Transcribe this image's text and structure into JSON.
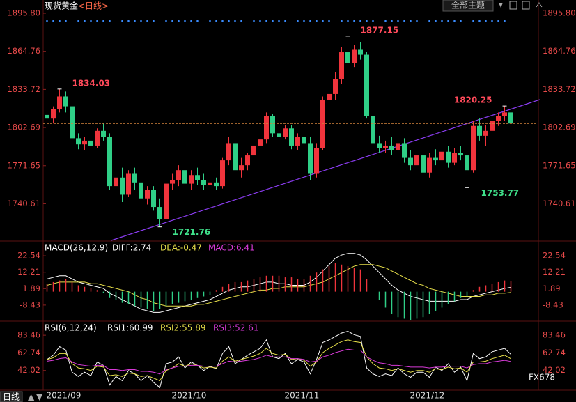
{
  "header": {
    "title": "现货黄金",
    "period": "<日线>",
    "theme_button": "全部主题"
  },
  "footer": {
    "period": "日线",
    "watermark": "FX678"
  },
  "chart_data": [
    {
      "type": "candlestick",
      "categories": [
        "2021/09",
        null,
        null,
        null,
        null,
        null,
        null,
        null,
        null,
        null,
        null,
        null,
        null,
        null,
        null,
        null,
        null,
        null,
        null,
        null,
        "2021/10",
        null,
        null,
        null,
        null,
        null,
        null,
        null,
        null,
        null,
        null,
        null,
        null,
        null,
        null,
        null,
        null,
        null,
        "2021/11",
        null,
        null,
        null,
        null,
        null,
        null,
        null,
        null,
        null,
        null,
        null,
        null,
        null,
        null,
        null,
        null,
        null,
        null,
        null,
        "2021/12",
        null,
        null,
        null,
        null,
        null,
        null,
        null,
        null,
        null,
        null,
        null,
        null,
        null,
        null,
        null,
        null
      ],
      "open": [
        1813,
        1810,
        1818,
        1828,
        1820,
        1794,
        1789,
        1792,
        1788,
        1800,
        1795,
        1755,
        1762,
        1748,
        1765,
        1758,
        1745,
        1752,
        1738,
        1728,
        1757,
        1760,
        1768,
        1757,
        1764,
        1760,
        1756,
        1758,
        1755,
        1776,
        1790,
        1768,
        1772,
        1780,
        1788,
        1793,
        1812,
        1798,
        1795,
        1802,
        1788,
        1795,
        1790,
        1765,
        1786,
        1825,
        1830,
        1842,
        1864,
        1855,
        1866,
        1862,
        1812,
        1790,
        1786,
        1788,
        1784,
        1790,
        1778,
        1772,
        1780,
        1766,
        1778,
        1776,
        1783,
        1774,
        1782,
        1780,
        1768,
        1804,
        1796,
        1800,
        1808,
        1812,
        1815
      ],
      "high": [
        1817,
        1820,
        1834.03,
        1832,
        1822,
        1798,
        1795,
        1797,
        1802,
        1806,
        1798,
        1766,
        1770,
        1768,
        1770,
        1762,
        1755,
        1755,
        1745,
        1760,
        1765,
        1772,
        1770,
        1768,
        1770,
        1765,
        1764,
        1762,
        1778,
        1795,
        1796,
        1778,
        1782,
        1790,
        1797,
        1815,
        1814,
        1802,
        1805,
        1805,
        1798,
        1800,
        1795,
        1790,
        1828,
        1835,
        1848,
        1868,
        1877.15,
        1870,
        1872,
        1864,
        1815,
        1796,
        1792,
        1795,
        1812,
        1794,
        1784,
        1785,
        1786,
        1782,
        1785,
        1788,
        1788,
        1786,
        1788,
        1783,
        1808,
        1810,
        1805,
        1812,
        1815,
        1820.25,
        1818
      ],
      "low": [
        1808,
        1806,
        1815,
        1815,
        1790,
        1785,
        1784,
        1786,
        1786,
        1792,
        1752,
        1750,
        1742,
        1746,
        1752,
        1742,
        1740,
        1735,
        1721.76,
        1725,
        1752,
        1755,
        1754,
        1752,
        1756,
        1752,
        1750,
        1752,
        1753,
        1772,
        1765,
        1762,
        1768,
        1775,
        1783,
        1790,
        1795,
        1790,
        1793,
        1785,
        1784,
        1788,
        1760,
        1762,
        1784,
        1820,
        1825,
        1838,
        1850,
        1852,
        1858,
        1810,
        1785,
        1782,
        1782,
        1780,
        1782,
        1774,
        1768,
        1768,
        1762,
        1762,
        1772,
        1773,
        1770,
        1772,
        1776,
        1753.77,
        1766,
        1792,
        1788,
        1796,
        1804,
        1808,
        1803
      ],
      "close": [
        1810,
        1818,
        1828,
        1820,
        1794,
        1789,
        1792,
        1788,
        1800,
        1795,
        1755,
        1762,
        1748,
        1765,
        1758,
        1745,
        1752,
        1738,
        1728,
        1757,
        1760,
        1768,
        1757,
        1764,
        1760,
        1756,
        1758,
        1755,
        1776,
        1790,
        1768,
        1772,
        1780,
        1788,
        1793,
        1812,
        1798,
        1795,
        1802,
        1788,
        1795,
        1790,
        1765,
        1786,
        1825,
        1830,
        1842,
        1864,
        1855,
        1866,
        1862,
        1812,
        1790,
        1786,
        1788,
        1784,
        1790,
        1778,
        1772,
        1780,
        1766,
        1778,
        1776,
        1783,
        1774,
        1782,
        1780,
        1768,
        1804,
        1796,
        1800,
        1808,
        1812,
        1815,
        1806
      ],
      "up_color": "#f0343c",
      "down_color": "#2fcf87",
      "last_line_color": "#d2823c",
      "ylim": [
        1710.8,
        1900.9
      ],
      "yticks": [
        {
          "value": 1895.8,
          "label": "1895.80"
        },
        1864.76,
        1833.72,
        1802.69,
        1771.65,
        1740.61
      ]
    },
    {
      "type": "macd",
      "title": "MACD(26,12,9)",
      "series": [
        {
          "name": "DIFF:2.74",
          "color": "#ffffff",
          "values": [
            8,
            9,
            10,
            10,
            8,
            6,
            5,
            4,
            3,
            2,
            -1,
            -3,
            -5,
            -7,
            -9,
            -11,
            -12,
            -13,
            -13,
            -12,
            -11,
            -10,
            -9,
            -8,
            -7,
            -6,
            -5,
            -3,
            -1,
            1,
            2,
            3,
            3,
            4,
            5,
            6,
            6,
            5,
            5,
            4,
            4,
            4,
            6,
            9,
            13,
            17,
            21,
            23,
            24,
            24,
            23,
            20,
            16,
            12,
            8,
            4,
            1,
            -1,
            -3,
            -4,
            -5,
            -6,
            -6,
            -6,
            -6,
            -6,
            -5,
            -5,
            -3,
            -2,
            -1,
            0,
            1,
            2,
            2.74
          ]
        },
        {
          "name": "DEA:-0.47",
          "color": "#e8e04a",
          "values": [
            4,
            5,
            6,
            6,
            6,
            6,
            6,
            5,
            5,
            4,
            3,
            2,
            1,
            0,
            -2,
            -4,
            -5,
            -7,
            -8,
            -9,
            -9,
            -9,
            -9,
            -9,
            -8,
            -8,
            -7,
            -6,
            -5,
            -4,
            -3,
            -2,
            -1,
            0,
            1,
            1,
            2,
            2,
            3,
            3,
            3,
            3,
            4,
            5,
            6,
            8,
            10,
            12,
            14,
            16,
            17,
            17,
            17,
            16,
            15,
            13,
            11,
            9,
            7,
            5,
            4,
            2,
            1,
            0,
            -1,
            -2,
            -3,
            -3,
            -3,
            -3,
            -2,
            -2,
            -1,
            -1,
            -0.47
          ]
        },
        {
          "name": "MACD:6.41",
          "color": "#d83ad8",
          "up_color": "#f0343c",
          "down_color": "#2fcf87",
          "values": [
            5,
            6,
            7,
            8,
            6,
            4,
            3,
            2,
            1,
            -1,
            -4,
            -5,
            -7,
            -8,
            -9,
            -10,
            -11,
            -12,
            -11,
            -9,
            -8,
            -7,
            -6,
            -5,
            -4,
            -3,
            -2,
            1,
            3,
            5,
            6,
            6,
            7,
            8,
            9,
            10,
            10,
            10,
            9,
            9,
            8,
            8,
            10,
            12,
            14,
            16,
            18,
            17,
            16,
            15,
            14,
            8,
            0,
            -5,
            -10,
            -14,
            -16,
            -17,
            -18,
            -17,
            -16,
            -14,
            -12,
            -10,
            -8,
            -6,
            -4,
            -3,
            1,
            3,
            4,
            5,
            6,
            7,
            6.41
          ]
        }
      ],
      "ylim": [
        -18.1,
        30.9
      ],
      "yticks": [
        22.54,
        12.21,
        1.89,
        -8.43
      ]
    },
    {
      "type": "line",
      "title": "RSI(6,12,24)",
      "series": [
        {
          "name": "RSI1:60.99",
          "color": "#ffffff",
          "values": [
            55,
            60,
            70,
            66,
            40,
            35,
            40,
            36,
            52,
            48,
            25,
            35,
            30,
            42,
            38,
            30,
            36,
            28,
            22,
            50,
            52,
            58,
            45,
            52,
            48,
            42,
            47,
            44,
            62,
            70,
            50,
            55,
            60,
            64,
            68,
            78,
            58,
            56,
            62,
            50,
            55,
            52,
            38,
            55,
            75,
            78,
            82,
            86,
            88,
            84,
            82,
            45,
            38,
            35,
            38,
            36,
            45,
            38,
            34,
            40,
            40,
            34,
            46,
            42,
            50,
            40,
            46,
            30,
            62,
            56,
            58,
            64,
            66,
            68,
            60.99
          ]
        },
        {
          "name": "RSI2:55.89",
          "color": "#e8e04a",
          "values": [
            55,
            57,
            62,
            62,
            50,
            45,
            44,
            42,
            47,
            46,
            36,
            37,
            35,
            39,
            38,
            35,
            36,
            33,
            30,
            42,
            45,
            50,
            47,
            50,
            48,
            45,
            46,
            45,
            53,
            58,
            53,
            55,
            57,
            59,
            62,
            68,
            62,
            60,
            61,
            55,
            56,
            54,
            47,
            52,
            63,
            68,
            72,
            76,
            78,
            76,
            75,
            58,
            50,
            45,
            44,
            42,
            44,
            42,
            40,
            42,
            42,
            40,
            44,
            43,
            46,
            44,
            45,
            40,
            52,
            52,
            53,
            56,
            58,
            60,
            55.89
          ]
        },
        {
          "name": "RSI3:52.61",
          "color": "#d83ad8",
          "values": [
            53,
            54,
            56,
            57,
            52,
            49,
            48,
            47,
            48,
            48,
            43,
            43,
            42,
            43,
            43,
            41,
            41,
            40,
            38,
            43,
            45,
            47,
            47,
            48,
            48,
            47,
            47,
            47,
            50,
            53,
            52,
            53,
            54,
            55,
            57,
            60,
            58,
            58,
            58,
            56,
            56,
            55,
            52,
            53,
            58,
            60,
            63,
            65,
            67,
            66,
            66,
            58,
            54,
            51,
            50,
            48,
            48,
            47,
            46,
            46,
            46,
            45,
            46,
            46,
            47,
            47,
            47,
            45,
            49,
            50,
            50,
            52,
            53,
            54,
            52.61
          ]
        }
      ],
      "ylim": [
        19.7,
        98.3
      ],
      "yticks": [
        83.46,
        62.74,
        42.02
      ]
    }
  ]
}
